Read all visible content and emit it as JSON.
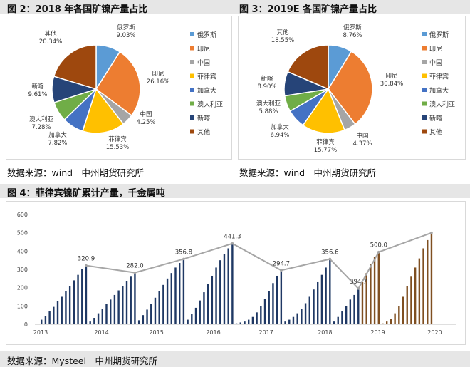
{
  "figure2": {
    "title": "图 2：2018 年各国矿镍产量占比",
    "source": "数据来源：wind　中州期货研究所"
  },
  "figure3": {
    "title": "图 3：2019E 各国矿镍产量占比",
    "source": "数据来源：wind　中州期货研究所"
  },
  "figure4": {
    "title": "图 4：菲律宾镍矿累计产量，千金属吨",
    "source": "数据来源：Mysteel　中州期货研究所"
  },
  "colors": {
    "russia": "#5b9bd5",
    "indonesia": "#ed7d31",
    "china": "#a5a5a5",
    "philippines": "#ffc000",
    "canada": "#4472c4",
    "australia": "#70ad47",
    "newcaledonia": "#264478",
    "other": "#9e480e",
    "bar_actual": "#1f3864",
    "bar_forecast": "#7f4f21",
    "peak_line": "#a6a6a6"
  },
  "chart_data": [
    {
      "type": "pie",
      "labels": [
        "俄罗斯",
        "印尼",
        "中国",
        "菲律宾",
        "加拿大",
        "澳大利亚",
        "新喀",
        "其他"
      ],
      "values": [
        9.03,
        26.16,
        4.25,
        15.53,
        7.82,
        7.28,
        9.61,
        20.34
      ],
      "value_labels": [
        "9.03%",
        "26.16%",
        "4.25%",
        "15.53%",
        "7.82%",
        "7.28%",
        "9.61%",
        "20.34%"
      ],
      "legend": [
        "俄罗斯",
        "印尼",
        "中国",
        "菲律宾",
        "加拿大",
        "澳大利亚",
        "新喀",
        "其他"
      ]
    },
    {
      "type": "pie",
      "labels": [
        "俄罗斯",
        "印尼",
        "中国",
        "菲律宾",
        "加拿大",
        "澳大利亚",
        "新喀",
        "其他"
      ],
      "values": [
        8.76,
        30.84,
        4.37,
        15.77,
        6.94,
        5.88,
        8.9,
        18.55
      ],
      "value_labels": [
        "8.76%",
        "30.84%",
        "4.37%",
        "15.77%",
        "6.94%",
        "5.88%",
        "8.90%",
        "18.55%"
      ],
      "legend": [
        "俄罗斯",
        "印尼",
        "中国",
        "菲律宾",
        "加拿大",
        "澳大利亚",
        "新喀",
        "其他"
      ]
    },
    {
      "type": "bar",
      "ylim": [
        0,
        600
      ],
      "yticks": [
        "0",
        "100",
        "200",
        "300",
        "400",
        "500",
        "600"
      ],
      "xticks": [
        "2013",
        "2014",
        "2015",
        "2016",
        "2017",
        "2018",
        "2019",
        "2020"
      ],
      "series": [
        {
          "values": [
            25,
            45,
            70,
            95,
            125,
            150,
            180,
            210,
            240,
            270,
            300,
            320.9
          ]
        },
        {
          "values": [
            15,
            35,
            60,
            85,
            110,
            135,
            160,
            185,
            210,
            235,
            260,
            282.0
          ]
        },
        {
          "values": [
            22,
            50,
            80,
            110,
            145,
            180,
            215,
            250,
            280,
            310,
            335,
            356.8
          ]
        },
        {
          "values": [
            25,
            55,
            90,
            130,
            175,
            220,
            265,
            310,
            350,
            385,
            415,
            441.3
          ]
        },
        {
          "values": [
            5,
            10,
            15,
            25,
            40,
            65,
            100,
            140,
            180,
            225,
            265,
            294.7
          ]
        },
        {
          "values": [
            15,
            25,
            40,
            60,
            85,
            115,
            150,
            190,
            230,
            270,
            310,
            356.6
          ]
        },
        {
          "values": [
            15,
            40,
            70,
            100,
            135,
            160,
            195
          ]
        },
        {
          "values": [
            230,
            280,
            330,
            370,
            394.7
          ]
        },
        {
          "values": [
            5,
            15,
            30,
            60,
            100,
            150,
            210,
            260,
            310,
            360,
            415,
            460,
            500.0
          ]
        }
      ],
      "peak_labels": [
        "320.9",
        "282.0",
        "356.8",
        "441.3",
        "294.7",
        "356.6",
        "394.7",
        "500.0"
      ]
    }
  ]
}
